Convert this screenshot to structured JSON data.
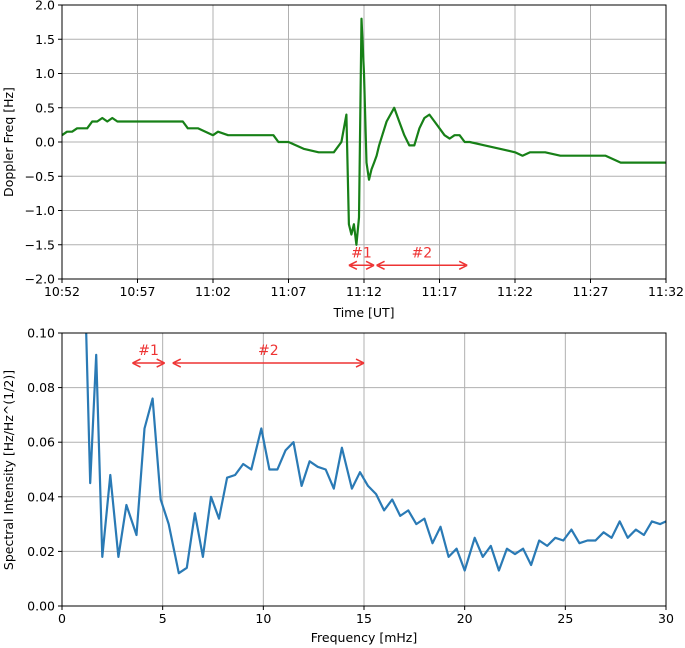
{
  "colors": {
    "doppler_line": "#178017",
    "spectrum_line": "#2a7ab5",
    "annotation": "#ee3333",
    "grid": "#b0b0b0",
    "axes": "#000000"
  },
  "chart_data": [
    {
      "type": "line",
      "xlabel": "Time [UT]",
      "ylabel": "Doppler Freq [Hz]",
      "x_is_time_of_day": true,
      "xlim": [
        "10:52",
        "11:32"
      ],
      "ylim": [
        -2.0,
        2.0
      ],
      "grid": true,
      "x_ticks": [
        "10:52",
        "10:57",
        "11:02",
        "11:07",
        "11:12",
        "11:17",
        "11:22",
        "11:27",
        "11:32"
      ],
      "y_ticks": [
        "−2.0",
        "−1.5",
        "−1.0",
        "−0.5",
        "0.0",
        "0.5",
        "1.0",
        "1.5",
        "2.0"
      ],
      "series": [
        {
          "x": [
            "10:52:00",
            "10:52:20",
            "10:52:40",
            "10:53:00",
            "10:53:40",
            "10:54:00",
            "10:54:20",
            "10:54:40",
            "10:55:00",
            "10:55:20",
            "10:55:40",
            "10:56:00",
            "10:57:00",
            "10:59:00",
            "11:00:00",
            "11:00:20",
            "11:01:00",
            "11:02:00",
            "11:02:20",
            "11:03:00",
            "11:04:00",
            "11:05:00",
            "11:06:00",
            "11:06:20",
            "11:07:00",
            "11:08:00",
            "11:09:00",
            "11:10:00",
            "11:10:30",
            "11:10:50",
            "11:11:00",
            "11:11:10",
            "11:11:20",
            "11:11:30",
            "11:11:40",
            "11:11:50",
            "11:12:00",
            "11:12:10",
            "11:12:20",
            "11:12:30",
            "11:12:40",
            "11:12:50",
            "11:13:00",
            "11:13:30",
            "11:14:00",
            "11:14:20",
            "11:14:40",
            "11:15:00",
            "11:15:20",
            "11:15:40",
            "11:16:00",
            "11:16:20",
            "11:16:40",
            "11:17:00",
            "11:17:20",
            "11:17:40",
            "11:18:00",
            "11:18:20",
            "11:18:40",
            "11:19:00",
            "11:20:00",
            "11:21:00",
            "11:22:00",
            "11:22:30",
            "11:23:00",
            "11:24:00",
            "11:25:00",
            "11:26:00",
            "11:27:00",
            "11:28:00",
            "11:29:00",
            "11:30:00",
            "11:31:00",
            "11:31:40",
            "11:32:00"
          ],
          "y": [
            0.1,
            0.15,
            0.15,
            0.2,
            0.2,
            0.3,
            0.3,
            0.35,
            0.3,
            0.35,
            0.3,
            0.3,
            0.3,
            0.3,
            0.3,
            0.2,
            0.2,
            0.1,
            0.15,
            0.1,
            0.1,
            0.1,
            0.1,
            0.0,
            0.0,
            -0.1,
            -0.15,
            -0.15,
            0.0,
            0.4,
            -1.2,
            -1.35,
            -1.2,
            -1.5,
            -1.1,
            1.8,
            1.0,
            -0.3,
            -0.55,
            -0.4,
            -0.3,
            -0.2,
            -0.05,
            0.3,
            0.5,
            0.3,
            0.1,
            -0.05,
            -0.05,
            0.2,
            0.35,
            0.4,
            0.3,
            0.2,
            0.1,
            0.05,
            0.1,
            0.1,
            0.0,
            0.0,
            -0.05,
            -0.1,
            -0.15,
            -0.2,
            -0.15,
            -0.15,
            -0.2,
            -0.2,
            -0.2,
            -0.2,
            -0.3,
            -0.3,
            -0.3,
            -0.3,
            -0.3
          ]
        }
      ],
      "annotations": [
        {
          "label": "#1",
          "from": "11:11:00",
          "to": "11:12:40",
          "y": -1.8
        },
        {
          "label": "#2",
          "from": "11:12:50",
          "to": "11:18:50",
          "y": -1.8
        }
      ]
    },
    {
      "type": "line",
      "xlabel": "Frequency [mHz]",
      "ylabel": "Spectral Intensity [Hz/Hz^(1/2)]",
      "xlim": [
        0,
        30
      ],
      "ylim": [
        0.0,
        0.1
      ],
      "grid": true,
      "x_ticks": [
        "0",
        "5",
        "10",
        "15",
        "20",
        "25",
        "30"
      ],
      "y_ticks": [
        "0.00",
        "0.02",
        "0.04",
        "0.06",
        "0.08",
        "0.10"
      ],
      "series": [
        {
          "x": [
            1.2,
            1.4,
            1.7,
            2.0,
            2.4,
            2.8,
            3.2,
            3.7,
            4.1,
            4.5,
            4.9,
            5.3,
            5.8,
            6.2,
            6.6,
            7.0,
            7.4,
            7.8,
            8.2,
            8.6,
            9.0,
            9.4,
            9.9,
            10.3,
            10.7,
            11.1,
            11.5,
            11.9,
            12.3,
            12.7,
            13.1,
            13.5,
            13.9,
            14.4,
            14.8,
            15.2,
            15.6,
            16.0,
            16.4,
            16.8,
            17.2,
            17.6,
            18.0,
            18.4,
            18.8,
            19.2,
            19.6,
            20.0,
            20.5,
            20.9,
            21.3,
            21.7,
            22.1,
            22.5,
            22.9,
            23.3,
            23.7,
            24.1,
            24.5,
            24.9,
            25.3,
            25.7,
            26.1,
            26.5,
            26.9,
            27.3,
            27.7,
            28.1,
            28.5,
            28.9,
            29.3,
            29.7,
            30.0
          ],
          "y": [
            0.1,
            0.045,
            0.092,
            0.018,
            0.048,
            0.018,
            0.037,
            0.026,
            0.065,
            0.076,
            0.039,
            0.03,
            0.012,
            0.014,
            0.034,
            0.018,
            0.04,
            0.032,
            0.047,
            0.048,
            0.052,
            0.05,
            0.065,
            0.05,
            0.05,
            0.057,
            0.06,
            0.044,
            0.053,
            0.051,
            0.05,
            0.043,
            0.058,
            0.043,
            0.049,
            0.044,
            0.041,
            0.035,
            0.039,
            0.033,
            0.035,
            0.03,
            0.032,
            0.023,
            0.029,
            0.018,
            0.021,
            0.013,
            0.025,
            0.018,
            0.022,
            0.013,
            0.021,
            0.019,
            0.021,
            0.015,
            0.024,
            0.022,
            0.025,
            0.024,
            0.028,
            0.023,
            0.024,
            0.024,
            0.027,
            0.025,
            0.031,
            0.025,
            0.028,
            0.026,
            0.031,
            0.03,
            0.031
          ]
        }
      ],
      "annotations": [
        {
          "label": "#1",
          "from": 3.5,
          "to": 5.1,
          "y": 0.089
        },
        {
          "label": "#2",
          "from": 5.5,
          "to": 15.0,
          "y": 0.089
        }
      ]
    }
  ]
}
